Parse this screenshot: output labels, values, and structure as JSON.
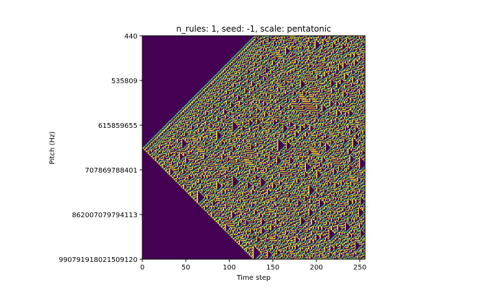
{
  "chart_data": {
    "type": "heatmap",
    "title": "n_rules: 1, seed: -1, scale: pentatonic",
    "xlabel": "Time step",
    "ylabel": "Pitch (Hz)",
    "xlim": [
      0,
      255
    ],
    "x_ticks": [
      0,
      50,
      100,
      150,
      200,
      250
    ],
    "y_ticks": [
      "440",
      "535809",
      "615859655",
      "707869788401",
      "862007079794113",
      "990791918021509120"
    ],
    "n_rows": 256,
    "start_row": 128,
    "colormap": "viridis",
    "colors": {
      "background": "#440154",
      "cell_low": "#21918c",
      "cell_mid": "#5ec962",
      "cell_high": "#fde725"
    },
    "grid": false,
    "legend": "none"
  }
}
